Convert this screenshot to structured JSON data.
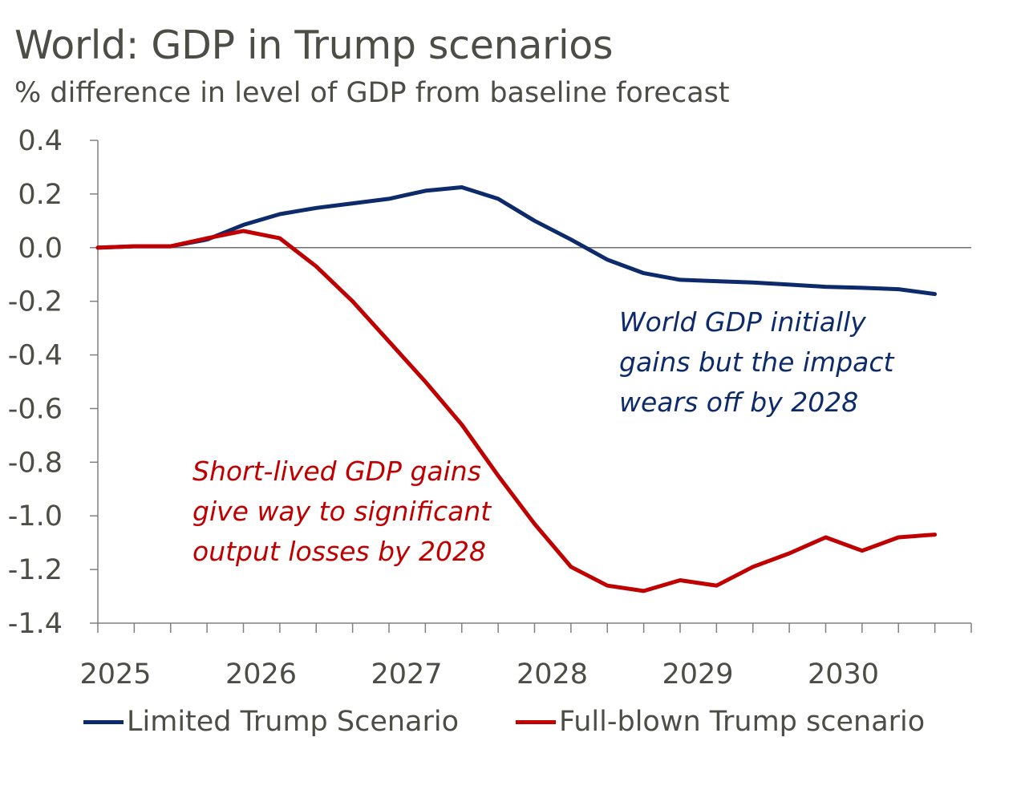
{
  "chart_data": {
    "type": "line",
    "title": "World: GDP in Trump scenarios",
    "subtitle": "% difference in level of GDP from baseline forecast",
    "xlabel": "",
    "ylabel": "",
    "ylim": [
      -1.4,
      0.4
    ],
    "y_ticks": [
      0.4,
      0.2,
      0.0,
      -0.2,
      -0.4,
      -0.6,
      -0.8,
      -1.0,
      -1.2,
      -1.4
    ],
    "y_tick_labels": [
      "0.4",
      "0.2",
      "0.0",
      "-0.2",
      "-0.4",
      "-0.6",
      "-0.8",
      "-1.0",
      "-1.2",
      "-1.4"
    ],
    "x_tick_labels": [
      "2025",
      "2026",
      "2027",
      "2028",
      "2029",
      "2030"
    ],
    "periods": [
      "2025 Q1",
      "2025 Q2",
      "2025 Q3",
      "2025 Q4",
      "2026 Q1",
      "2026 Q2",
      "2026 Q3",
      "2026 Q4",
      "2027 Q1",
      "2027 Q2",
      "2027 Q3",
      "2027 Q4",
      "2028 Q1",
      "2028 Q2",
      "2028 Q3",
      "2028 Q4",
      "2029 Q1",
      "2029 Q2",
      "2029 Q3",
      "2029 Q4",
      "2030 Q1",
      "2030 Q2",
      "2030 Q3",
      "2030 Q4"
    ],
    "series": [
      {
        "name": "Limited Trump Scenario",
        "color": "#0d2a6b",
        "values": [
          0.0,
          0.005,
          0.005,
          0.03,
          0.085,
          0.125,
          0.148,
          0.165,
          0.182,
          0.212,
          0.225,
          0.182,
          0.1,
          0.03,
          -0.045,
          -0.095,
          -0.12,
          -0.125,
          -0.13,
          -0.138,
          -0.146,
          -0.15,
          -0.155,
          -0.173
        ]
      },
      {
        "name": "Full-blown Trump scenario",
        "color": "#c00000",
        "values": [
          0.0,
          0.005,
          0.005,
          0.035,
          0.062,
          0.035,
          -0.07,
          -0.2,
          -0.35,
          -0.5,
          -0.66,
          -0.85,
          -1.03,
          -1.19,
          -1.26,
          -1.28,
          -1.24,
          -1.26,
          -1.19,
          -1.14,
          -1.08,
          -1.13,
          -1.08,
          -1.07
        ]
      }
    ],
    "legend_position": "bottom",
    "grid": false
  },
  "annotations": {
    "blue": [
      "World GDP initially",
      "gains but the impact",
      "wears off by 2028"
    ],
    "red": [
      "Short-lived GDP gains",
      "give way to significant",
      "output losses by 2028"
    ]
  },
  "colors": {
    "text": "#4d4d47",
    "axis": "#808080",
    "limited": "#0d2a6b",
    "fullblown": "#c00000"
  }
}
